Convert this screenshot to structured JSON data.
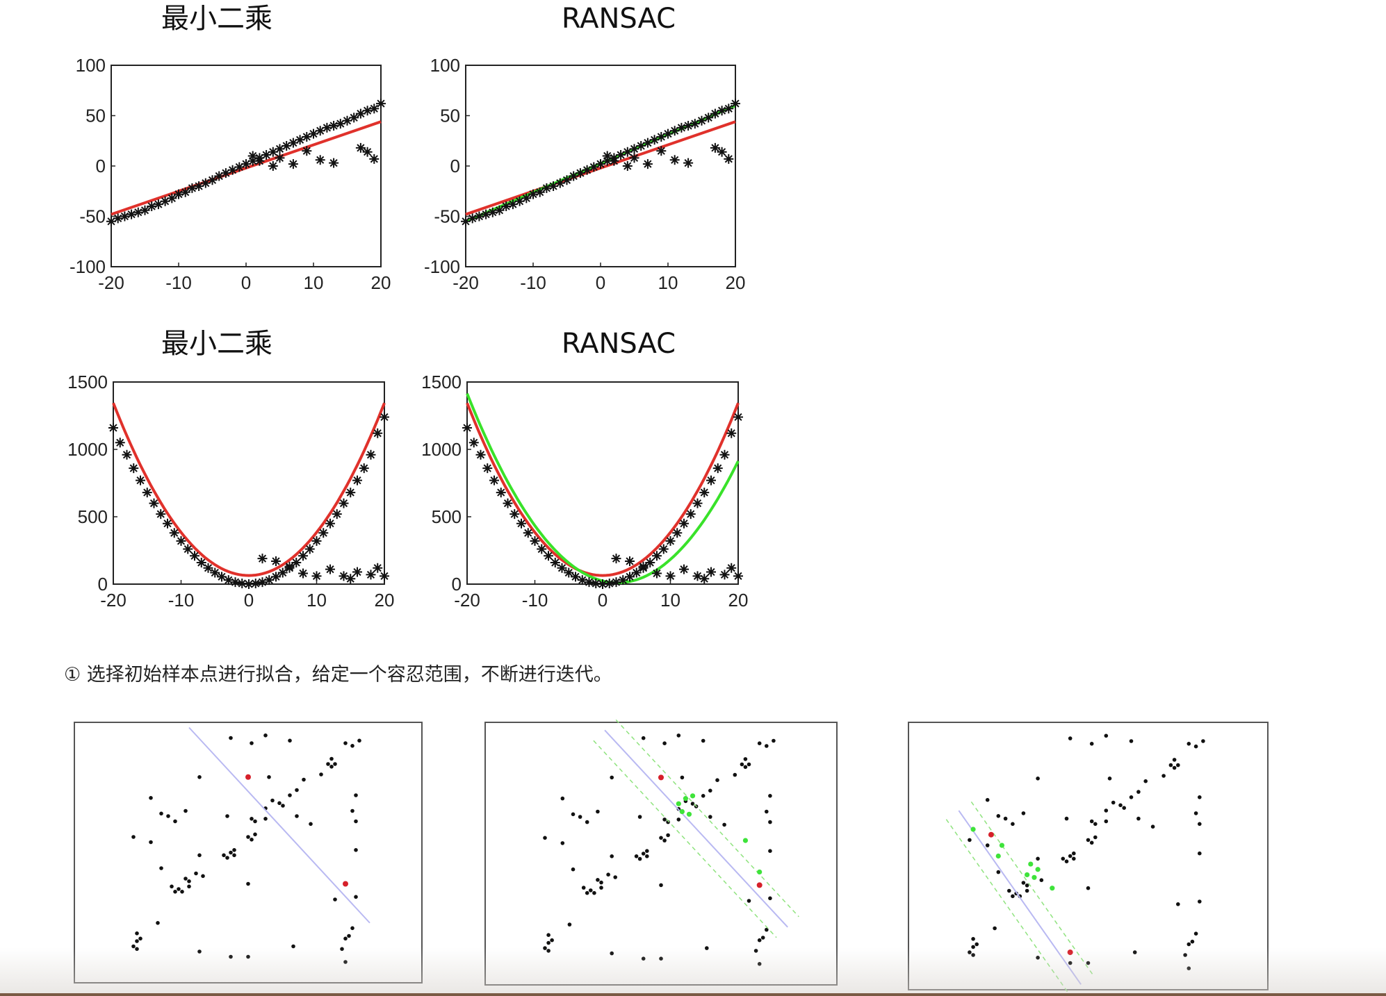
{
  "colors": {
    "ls": "#e0312b",
    "ransac": "#39e22a",
    "points": "#111111",
    "line": "#b9b9f2",
    "sample": "#d6202a",
    "inlier": "#3ee33a",
    "band": "#8fe37e"
  },
  "chart_data": [
    {
      "id": "ls-linear",
      "type": "scatter",
      "title": "最小二乘",
      "xlim": [
        -20,
        20
      ],
      "ylim": [
        -100,
        100
      ],
      "xticks": [
        -20,
        -10,
        0,
        10,
        20
      ],
      "yticks": [
        100,
        50,
        0,
        -50,
        -100
      ],
      "series": [
        {
          "kind": "points",
          "x": [
            -20,
            -19,
            -18,
            -17,
            -16,
            -15,
            -14,
            -13,
            -12,
            -11,
            -10,
            -9,
            -8,
            -7,
            -6,
            -5,
            -4,
            -3,
            -2,
            -1,
            0,
            1,
            2,
            3,
            4,
            5,
            6,
            7,
            8,
            9,
            10,
            11,
            12,
            13,
            14,
            15,
            16,
            17,
            18,
            19,
            20,
            1,
            2,
            4,
            5,
            7,
            9,
            11,
            13,
            17,
            18,
            19
          ],
          "y": [
            -55,
            -52,
            -50,
            -48,
            -46,
            -44,
            -40,
            -38,
            -35,
            -32,
            -28,
            -26,
            -22,
            -20,
            -17,
            -14,
            -10,
            -7,
            -4,
            -1,
            2,
            5,
            8,
            11,
            14,
            17,
            20,
            23,
            26,
            29,
            32,
            35,
            38,
            40,
            42,
            45,
            48,
            52,
            55,
            57,
            62,
            10,
            5,
            0,
            8,
            2,
            15,
            6,
            3,
            18,
            14,
            7
          ]
        },
        {
          "kind": "fit",
          "x": [
            -20,
            20
          ],
          "y": [
            -48,
            44
          ]
        }
      ]
    },
    {
      "id": "ransac-linear",
      "type": "scatter",
      "title": "RANSAC",
      "xlim": [
        -20,
        20
      ],
      "ylim": [
        -100,
        100
      ],
      "xticks": [
        -20,
        -10,
        0,
        10,
        20
      ],
      "yticks": [
        100,
        50,
        0,
        -50,
        -100
      ],
      "series": [
        {
          "kind": "points",
          "x": [
            -20,
            -19,
            -18,
            -17,
            -16,
            -15,
            -14,
            -13,
            -12,
            -11,
            -10,
            -9,
            -8,
            -7,
            -6,
            -5,
            -4,
            -3,
            -2,
            -1,
            0,
            1,
            2,
            3,
            4,
            5,
            6,
            7,
            8,
            9,
            10,
            11,
            12,
            13,
            14,
            15,
            16,
            17,
            18,
            19,
            20,
            1,
            2,
            4,
            5,
            7,
            9,
            11,
            13,
            17,
            18,
            19
          ],
          "y": [
            -55,
            -52,
            -50,
            -48,
            -46,
            -44,
            -40,
            -38,
            -35,
            -32,
            -28,
            -26,
            -22,
            -20,
            -17,
            -14,
            -10,
            -7,
            -4,
            -1,
            2,
            5,
            8,
            11,
            14,
            17,
            20,
            23,
            26,
            29,
            32,
            35,
            38,
            40,
            42,
            45,
            48,
            52,
            55,
            57,
            62,
            10,
            5,
            0,
            8,
            2,
            15,
            6,
            3,
            18,
            14,
            7
          ]
        },
        {
          "kind": "fit",
          "x": [
            -20,
            20
          ],
          "y": [
            -48,
            44
          ]
        },
        {
          "kind": "fit2",
          "x": [
            -20,
            20
          ],
          "y": [
            -55,
            60
          ]
        }
      ]
    },
    {
      "id": "ls-quadratic",
      "type": "scatter",
      "title": "最小二乘",
      "xlim": [
        -20,
        20
      ],
      "ylim": [
        0,
        1500
      ],
      "xticks": [
        -20,
        -10,
        0,
        10,
        20
      ],
      "yticks": [
        1500,
        1000,
        500,
        0
      ],
      "series": [
        {
          "kind": "points",
          "x": [
            -20,
            -19,
            -18,
            -17,
            -16,
            -15,
            -14,
            -13,
            -12,
            -11,
            -10,
            -9,
            -8,
            -7,
            -6,
            -5,
            -4,
            -3,
            -2,
            -1,
            0,
            1,
            2,
            3,
            4,
            5,
            6,
            7,
            8,
            9,
            10,
            11,
            12,
            13,
            14,
            15,
            16,
            17,
            18,
            19,
            20,
            2,
            4,
            6,
            8,
            10,
            12,
            14,
            15,
            16,
            18,
            19,
            20
          ],
          "y": [
            1160,
            1050,
            960,
            860,
            770,
            680,
            600,
            520,
            450,
            380,
            320,
            260,
            210,
            160,
            120,
            85,
            55,
            30,
            15,
            5,
            0,
            5,
            15,
            30,
            55,
            85,
            120,
            160,
            210,
            260,
            320,
            380,
            450,
            520,
            600,
            680,
            770,
            860,
            960,
            1120,
            1240,
            190,
            170,
            130,
            80,
            60,
            110,
            60,
            40,
            90,
            70,
            120,
            60
          ]
        },
        {
          "kind": "fit",
          "quad": [
            3.2,
            0,
            64
          ],
          "note": "red"
        }
      ]
    },
    {
      "id": "ransac-quadratic",
      "type": "scatter",
      "title": "RANSAC",
      "xlim": [
        -20,
        20
      ],
      "ylim": [
        0,
        1500
      ],
      "xticks": [
        -20,
        -10,
        0,
        10,
        20
      ],
      "yticks": [
        1500,
        1000,
        500,
        0
      ],
      "series": [
        {
          "kind": "points",
          "x": [
            -20,
            -19,
            -18,
            -17,
            -16,
            -15,
            -14,
            -13,
            -12,
            -11,
            -10,
            -9,
            -8,
            -7,
            -6,
            -5,
            -4,
            -3,
            -2,
            -1,
            0,
            1,
            2,
            3,
            4,
            5,
            6,
            7,
            8,
            9,
            10,
            11,
            12,
            13,
            14,
            15,
            16,
            17,
            18,
            19,
            20,
            2,
            4,
            6,
            8,
            10,
            12,
            14,
            15,
            16,
            18,
            19,
            20
          ],
          "y": [
            1160,
            1050,
            960,
            860,
            770,
            680,
            600,
            520,
            450,
            380,
            320,
            260,
            210,
            160,
            120,
            85,
            55,
            30,
            15,
            5,
            0,
            5,
            15,
            30,
            55,
            85,
            120,
            160,
            210,
            260,
            320,
            380,
            450,
            520,
            600,
            680,
            770,
            860,
            960,
            1120,
            1240,
            190,
            170,
            130,
            80,
            60,
            110,
            60,
            40,
            90,
            70,
            120,
            60
          ]
        },
        {
          "kind": "fit",
          "quad": [
            3.2,
            0,
            64
          ],
          "note": "red"
        },
        {
          "kind": "fit2",
          "quad": [
            2.85,
            2.2,
            10
          ],
          "note": "green"
        }
      ]
    }
  ],
  "caption": "① 选择初始样本点进行拟合，给定一个容忍范围，不断进行迭代。",
  "ransac_steps": [
    {
      "id": "step-1",
      "show_band": false,
      "samples": [
        [
          0.5,
          0.21
        ],
        [
          0.78,
          0.62
        ]
      ],
      "inliers": []
    },
    {
      "id": "step-2",
      "show_band": true,
      "samples": [
        [
          0.5,
          0.21
        ],
        [
          0.78,
          0.62
        ]
      ],
      "inliers": [
        [
          0.57,
          0.29
        ],
        [
          0.59,
          0.28
        ],
        [
          0.55,
          0.31
        ],
        [
          0.56,
          0.34
        ],
        [
          0.58,
          0.35
        ],
        [
          0.74,
          0.45
        ],
        [
          0.78,
          0.57
        ]
      ]
    },
    {
      "id": "step-3",
      "show_band": true,
      "samples": [
        [
          0.23,
          0.42
        ],
        [
          0.45,
          0.86
        ]
      ],
      "inliers": [
        [
          0.18,
          0.4
        ],
        [
          0.26,
          0.46
        ],
        [
          0.25,
          0.5
        ],
        [
          0.34,
          0.53
        ],
        [
          0.36,
          0.55
        ],
        [
          0.33,
          0.57
        ],
        [
          0.35,
          0.58
        ],
        [
          0.4,
          0.62
        ]
      ]
    }
  ],
  "scatter_points": [
    [
      0.45,
      0.06
    ],
    [
      0.55,
      0.05
    ],
    [
      0.62,
      0.07
    ],
    [
      0.51,
      0.08
    ],
    [
      0.78,
      0.08
    ],
    [
      0.82,
      0.07
    ],
    [
      0.8,
      0.09
    ],
    [
      0.74,
      0.14
    ],
    [
      0.75,
      0.16
    ],
    [
      0.73,
      0.16
    ],
    [
      0.74,
      0.17
    ],
    [
      0.36,
      0.21
    ],
    [
      0.56,
      0.21
    ],
    [
      0.66,
      0.22
    ],
    [
      0.71,
      0.2
    ],
    [
      0.64,
      0.26
    ],
    [
      0.62,
      0.28
    ],
    [
      0.81,
      0.28
    ],
    [
      0.22,
      0.29
    ],
    [
      0.57,
      0.3
    ],
    [
      0.59,
      0.31
    ],
    [
      0.55,
      0.33
    ],
    [
      0.6,
      0.32
    ],
    [
      0.8,
      0.34
    ],
    [
      0.25,
      0.35
    ],
    [
      0.27,
      0.36
    ],
    [
      0.29,
      0.38
    ],
    [
      0.32,
      0.34
    ],
    [
      0.44,
      0.36
    ],
    [
      0.55,
      0.37
    ],
    [
      0.51,
      0.37
    ],
    [
      0.52,
      0.38
    ],
    [
      0.64,
      0.36
    ],
    [
      0.68,
      0.39
    ],
    [
      0.81,
      0.38
    ],
    [
      0.17,
      0.44
    ],
    [
      0.22,
      0.46
    ],
    [
      0.5,
      0.44
    ],
    [
      0.51,
      0.45
    ],
    [
      0.52,
      0.43
    ],
    [
      0.46,
      0.49
    ],
    [
      0.45,
      0.5
    ],
    [
      0.46,
      0.51
    ],
    [
      0.44,
      0.52
    ],
    [
      0.43,
      0.51
    ],
    [
      0.81,
      0.49
    ],
    [
      0.36,
      0.51
    ],
    [
      0.25,
      0.56
    ],
    [
      0.35,
      0.58
    ],
    [
      0.37,
      0.59
    ],
    [
      0.32,
      0.6
    ],
    [
      0.33,
      0.61
    ],
    [
      0.33,
      0.63
    ],
    [
      0.3,
      0.64
    ],
    [
      0.28,
      0.63
    ],
    [
      0.29,
      0.65
    ],
    [
      0.31,
      0.65
    ],
    [
      0.5,
      0.62
    ],
    [
      0.75,
      0.68
    ],
    [
      0.81,
      0.67
    ],
    [
      0.18,
      0.81
    ],
    [
      0.19,
      0.83
    ],
    [
      0.24,
      0.77
    ],
    [
      0.18,
      0.84
    ],
    [
      0.17,
      0.86
    ],
    [
      0.18,
      0.87
    ],
    [
      0.36,
      0.88
    ],
    [
      0.45,
      0.9
    ],
    [
      0.5,
      0.9
    ],
    [
      0.63,
      0.86
    ],
    [
      0.77,
      0.87
    ],
    [
      0.79,
      0.82
    ],
    [
      0.78,
      0.83
    ],
    [
      0.78,
      0.92
    ],
    [
      0.8,
      0.79
    ]
  ]
}
